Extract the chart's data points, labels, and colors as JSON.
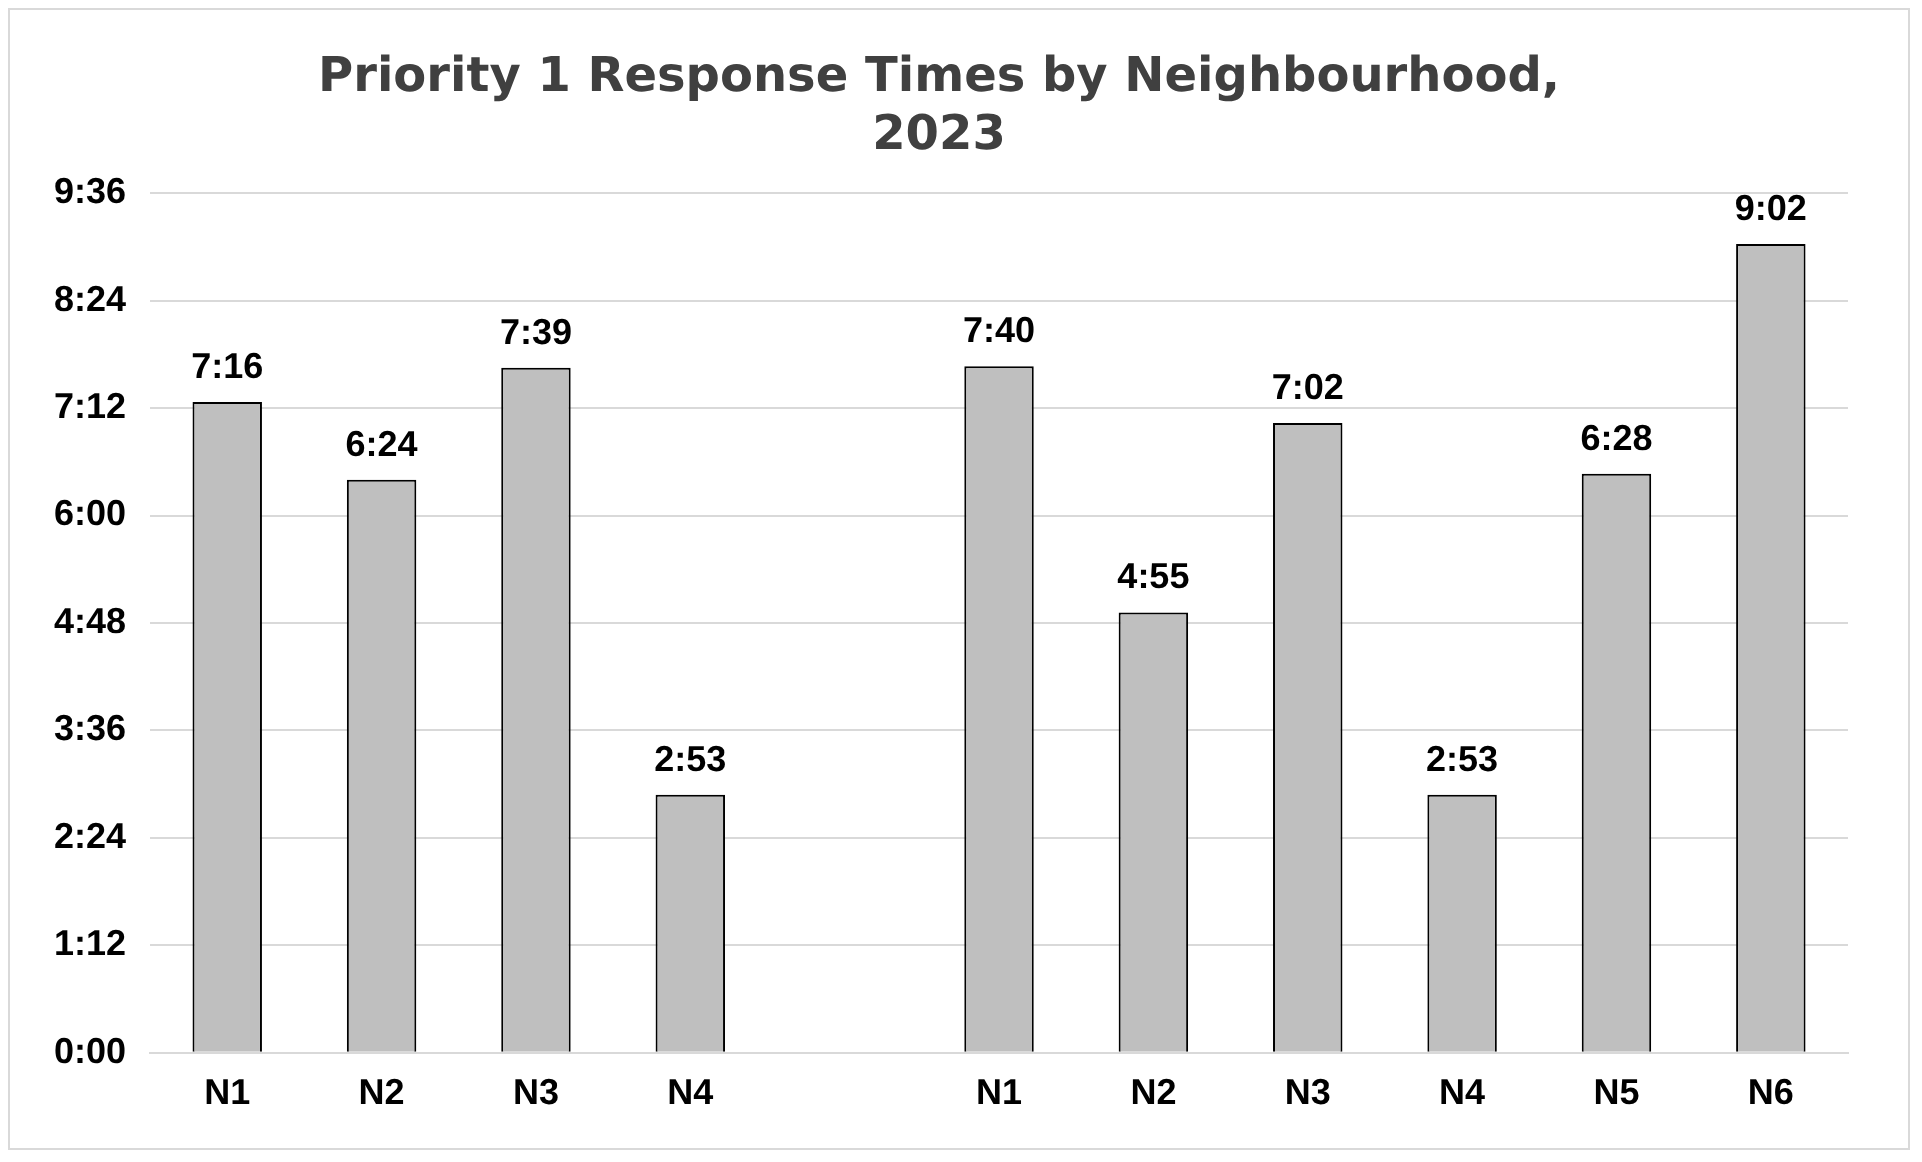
{
  "chart_data": {
    "type": "bar",
    "title": "Priority 1 Response Times by Neighbourhood, 2023",
    "categories": [
      "N1",
      "N2",
      "N3",
      "N4",
      null,
      "N1",
      "N2",
      "N3",
      "N4",
      "N5",
      "N6"
    ],
    "values": [
      7.267,
      6.4,
      7.65,
      2.883,
      null,
      7.667,
      4.917,
      7.033,
      2.883,
      6.467,
      9.033
    ],
    "value_labels": [
      "7:16",
      "6:24",
      "7:39",
      "2:53",
      null,
      "7:40",
      "4:55",
      "7:02",
      "2:53",
      "6:28",
      "9:02"
    ],
    "color": "#bfbfbf",
    "ylim": [
      0,
      9.6
    ],
    "yticks": [
      {
        "value": 0,
        "label": "0:00"
      },
      {
        "value": 1.2,
        "label": "1:12"
      },
      {
        "value": 2.4,
        "label": "2:24"
      },
      {
        "value": 3.6,
        "label": "3:36"
      },
      {
        "value": 4.8,
        "label": "4:48"
      },
      {
        "value": 6,
        "label": "6:00"
      },
      {
        "value": 7.2,
        "label": "7:12"
      },
      {
        "value": 8.4,
        "label": "8:24"
      },
      {
        "value": 9.6,
        "label": "9:36"
      }
    ],
    "grid": "y",
    "legend": false
  }
}
